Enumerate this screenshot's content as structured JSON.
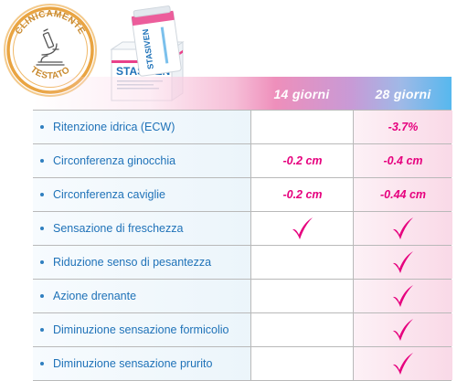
{
  "badge": {
    "top_text": "CLINICAMENTE",
    "bottom_text": "TESTATO",
    "icon": "microscope-icon",
    "ring_color": "#e9a441"
  },
  "product": {
    "brand": "STASIVEN",
    "icon": "product-box-and-tube"
  },
  "table": {
    "columns": [
      "14 giorni",
      "28 giorni"
    ],
    "rows": [
      {
        "label": "Ritenzione idrica (ECW)",
        "day14": "",
        "day28": "-3.7%"
      },
      {
        "label": "Circonferenza ginocchia",
        "day14": "-0.2 cm",
        "day28": "-0.4 cm"
      },
      {
        "label": "Circonferenza caviglie",
        "day14": "-0.2 cm",
        "day28": "-0.44 cm"
      },
      {
        "label": "Sensazione di freschezza",
        "day14": "check",
        "day28": "check"
      },
      {
        "label": "Riduzione senso di pesantezza",
        "day14": "",
        "day28": "check"
      },
      {
        "label": "Azione drenante",
        "day14": "",
        "day28": "check"
      },
      {
        "label": "Diminuzione sensazione formicolio",
        "day14": "",
        "day28": "check"
      },
      {
        "label": "Diminuzione sensazione prurito",
        "day14": "",
        "day28": "check"
      }
    ]
  },
  "colors": {
    "accent": "#e6007e",
    "label_blue": "#1f72b8",
    "header_pink": "#ee8fbb",
    "header_blue": "#56b8ee"
  }
}
